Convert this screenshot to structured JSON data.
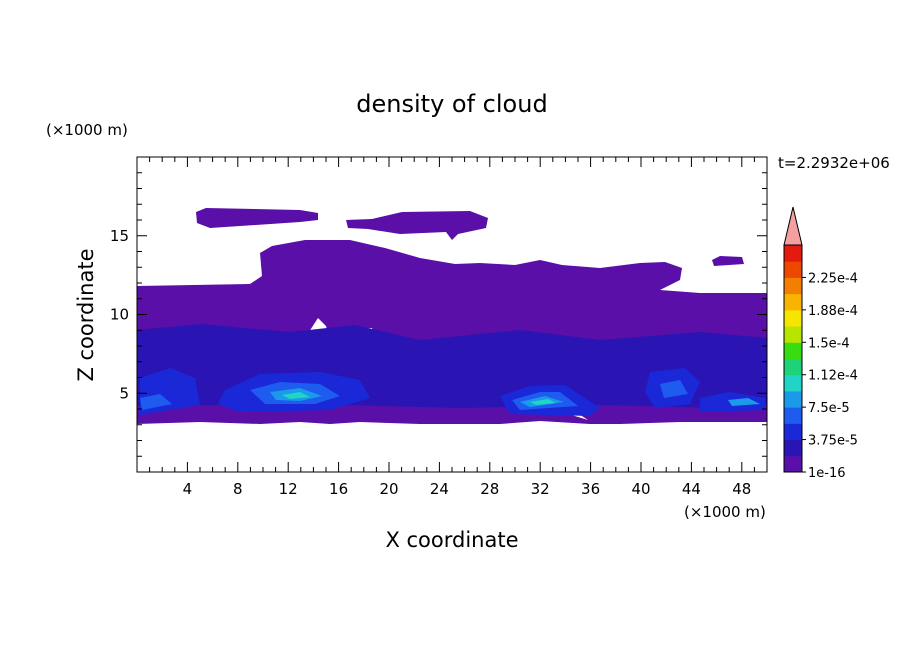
{
  "chart_data": {
    "type": "heatmap",
    "title": "density of cloud",
    "xlabel": "X coordinate",
    "ylabel": "Z coordinate",
    "x_unit_label": "(×1000 m)",
    "y_unit_label": "(×1000 m)",
    "time_label": "t=2.2932e+06",
    "xlim": [
      0,
      50
    ],
    "ylim": [
      0,
      20
    ],
    "x_ticks": [
      "4",
      "8",
      "12",
      "16",
      "20",
      "24",
      "28",
      "32",
      "36",
      "40",
      "44",
      "48"
    ],
    "y_ticks": [
      "5",
      "10",
      "15"
    ],
    "colorbar": {
      "labels": [
        "1e-16",
        "3.75e-5",
        "7.5e-5",
        "1.12e-4",
        "1.5e-4",
        "1.88e-4",
        "2.25e-4"
      ],
      "levels": [
        1e-16,
        3.75e-05,
        7.5e-05,
        0.000112,
        0.00015,
        0.000188,
        0.000225
      ],
      "colors": [
        "#5a0fa8",
        "#2a14b4",
        "#1a28d8",
        "#1e5cf0",
        "#1a9ae8",
        "#20d4c8",
        "#1ed27a",
        "#38dc10",
        "#b8e400",
        "#f4e600",
        "#f8b400",
        "#f47e00",
        "#ec4800",
        "#e41a10"
      ],
      "extend_color": "#f4a0a0"
    }
  }
}
